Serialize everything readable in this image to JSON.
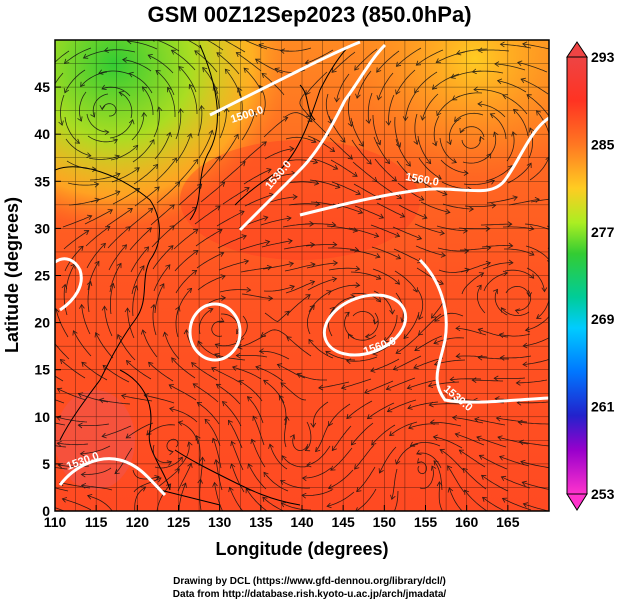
{
  "title": "GSM 00Z12Sep2023 (850.0hPa)",
  "axes": {
    "xlabel": "Longitude (degrees)",
    "ylabel": "Latitude  (degrees)",
    "xticks": [
      "110",
      "115",
      "120",
      "125",
      "130",
      "135",
      "140",
      "145",
      "150",
      "155",
      "160",
      "165"
    ],
    "yticks": [
      "0",
      "5",
      "10",
      "15",
      "20",
      "25",
      "30",
      "35",
      "40",
      "45"
    ],
    "xrange": [
      110,
      170
    ],
    "yrange": [
      0,
      50
    ]
  },
  "colorbar": {
    "labels": [
      "293",
      "285",
      "277",
      "269",
      "261",
      "253"
    ],
    "range": [
      253,
      293
    ],
    "colors": [
      "#ff33cc",
      "#9900cc",
      "#2222cc",
      "#0077ff",
      "#00ccff",
      "#00cc99",
      "#33cc33",
      "#88ee22",
      "#ddee22",
      "#ffcc22",
      "#ff9922",
      "#ff6622",
      "#ff3322",
      "#ee4444"
    ]
  },
  "contours": {
    "color": "#ffffff",
    "labels": [
      "1500.0",
      "1530.0",
      "1560.0",
      "1560.0",
      "1530.0",
      "1530.0"
    ]
  },
  "credits": {
    "line1": "Drawing by DCL (https://www.gfd-dennou.org/library/dcl/)",
    "line2": "Data from http://database.rish.kyoto-u.ac.jp/arch/jmadata/"
  }
}
